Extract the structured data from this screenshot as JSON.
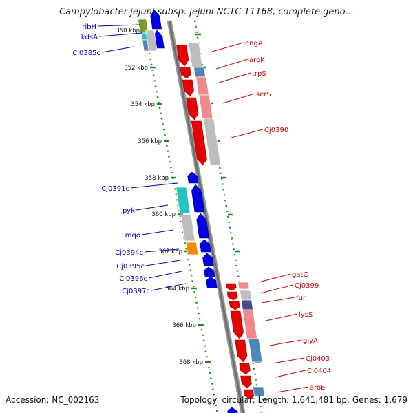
{
  "title": "Campylobacter jejuni subsp. jejuni NCTC 11168, complete geno...",
  "footer": {
    "accession": "Accession: NC_002163",
    "topology": "Topology: circular; Length: 1,641,481 bp; Genes: 1,679"
  },
  "colors": {
    "forward_strand": "#e60000",
    "reverse_strand": "#0000e6",
    "forward_label": "#cc0000",
    "reverse_label": "#0000bb",
    "backbone": "#808080",
    "tick": "#1f8a1f",
    "cog_gray": "#bdbdbd",
    "cog_pink": "#ef8a8a",
    "cog_steel": "#4f86b8",
    "cog_cyan": "#25c4c4",
    "cog_orange": "#f08c00",
    "cog_olive": "#7a9a2a",
    "cog_navy": "#4a4a8a"
  },
  "ticks": [
    "350 kbp",
    "352 kbp",
    "354 kbp",
    "356 kbp",
    "358 kbp",
    "360 kbp",
    "362 kbp",
    "364 kbp",
    "366 kbp",
    "368 kbp"
  ],
  "genes_forward": [
    "engA",
    "aroK",
    "trpS",
    "serS",
    "Cj0390",
    "gatC",
    "Cj0399",
    "fur",
    "lysS",
    "glyA",
    "Cj0403",
    "Cj0404",
    "aroE"
  ],
  "genes_reverse": [
    "ribH",
    "kdsA",
    "Cj0385c",
    "Cj0391c",
    "pyk",
    "mqo",
    "Cj0394c",
    "Cj0395c",
    "Cj0396c",
    "Cj0397c"
  ]
}
